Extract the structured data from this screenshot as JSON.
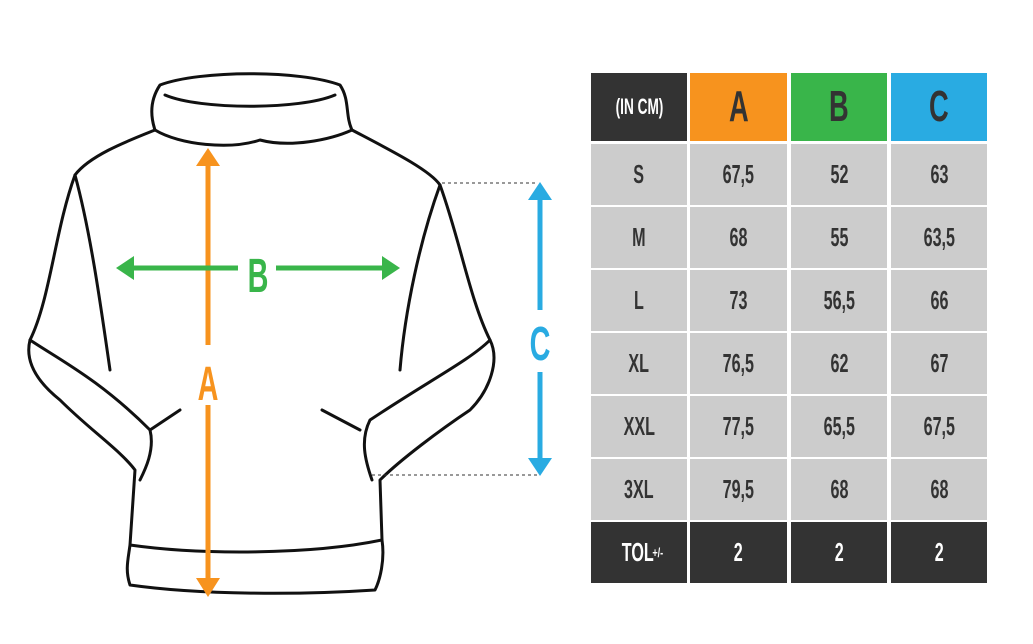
{
  "colors": {
    "A": "#f7931e",
    "B": "#39b54a",
    "C": "#29abe2",
    "dark": "#333333",
    "cell": "#cccccc"
  },
  "diagram": {
    "labels": {
      "a": "A",
      "b": "B",
      "c": "C"
    }
  },
  "table": {
    "unit_label": "(IN CM)",
    "columns": [
      "A",
      "B",
      "C"
    ],
    "rows": [
      {
        "size": "S",
        "values": [
          "67,5",
          "52",
          "63"
        ]
      },
      {
        "size": "M",
        "values": [
          "68",
          "55",
          "63,5"
        ]
      },
      {
        "size": "L",
        "values": [
          "73",
          "56,5",
          "66"
        ]
      },
      {
        "size": "XL",
        "values": [
          "76,5",
          "62",
          "67"
        ]
      },
      {
        "size": "XXL",
        "values": [
          "77,5",
          "65,5",
          "67,5"
        ]
      },
      {
        "size": "3XL",
        "values": [
          "79,5",
          "68",
          "68"
        ]
      }
    ],
    "tolerance": {
      "label": "TOL",
      "suffix": "+/-",
      "values": [
        "2",
        "2",
        "2"
      ]
    }
  }
}
